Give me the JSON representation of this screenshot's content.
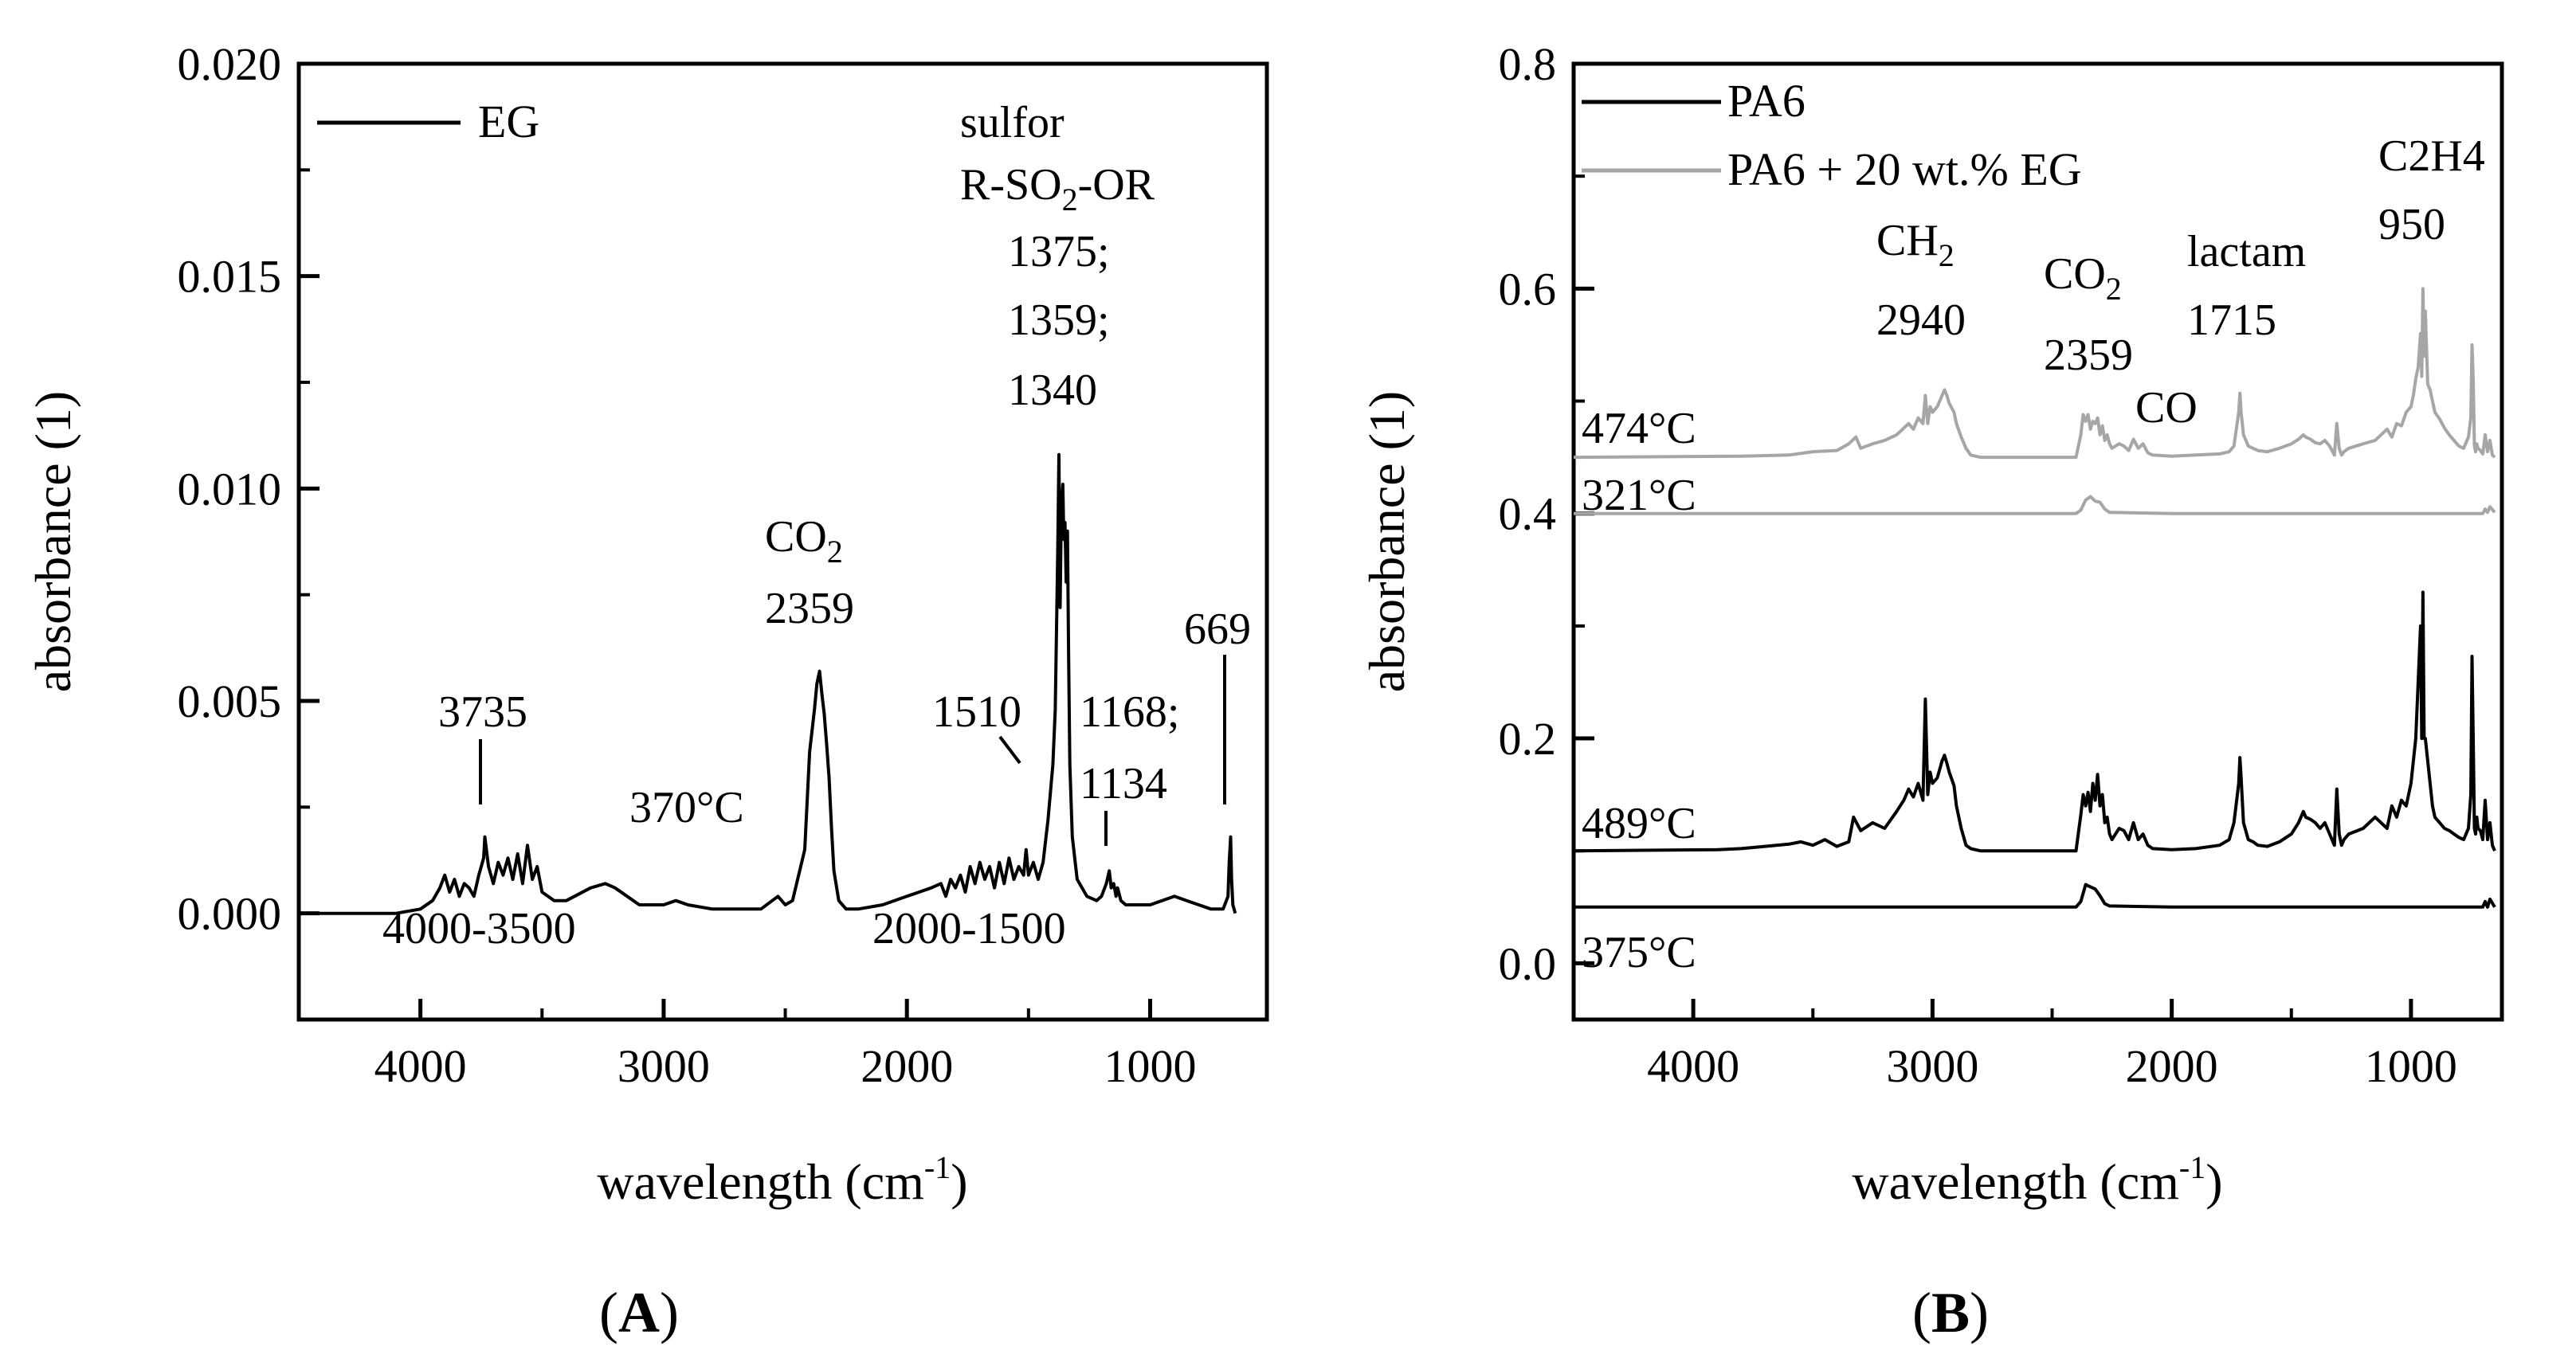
{
  "chart_data": [
    {
      "type": "line",
      "panel_label": "A",
      "xlabel": "wavelength (cm",
      "xlabel_sup": "-1",
      "xlabel_end": ")",
      "ylabel": "absorbance (1)",
      "xlim": [
        4500,
        520
      ],
      "ylim": [
        -0.0025,
        0.02
      ],
      "xticks": [
        4000,
        3000,
        2000,
        1000
      ],
      "xtick_labels": [
        "4000",
        "3000",
        "2000",
        "1000"
      ],
      "yticks": [
        0.0,
        0.005,
        0.01,
        0.015,
        0.02
      ],
      "ytick_labels": [
        "0.000",
        "0.005",
        "0.010",
        "0.015",
        "0.020"
      ],
      "legend": [
        {
          "name": "EG",
          "color": "#000000"
        }
      ],
      "series": [
        {
          "name": "EG",
          "color": "#000000",
          "x": [
            4500,
            4100,
            4000,
            3950,
            3920,
            3900,
            3880,
            3860,
            3840,
            3820,
            3800,
            3780,
            3760,
            3740,
            3735,
            3720,
            3700,
            3680,
            3660,
            3640,
            3620,
            3600,
            3580,
            3560,
            3540,
            3520,
            3500,
            3450,
            3400,
            3300,
            3240,
            3200,
            3100,
            3000,
            2950,
            2900,
            2800,
            2700,
            2600,
            2530,
            2500,
            2470,
            2420,
            2400,
            2380,
            2370,
            2359,
            2350,
            2340,
            2330,
            2320,
            2310,
            2300,
            2280,
            2250,
            2200,
            2100,
            2000,
            1950,
            1900,
            1860,
            1840,
            1820,
            1800,
            1780,
            1760,
            1740,
            1720,
            1700,
            1680,
            1660,
            1640,
            1620,
            1600,
            1580,
            1560,
            1540,
            1520,
            1510,
            1500,
            1480,
            1460,
            1440,
            1420,
            1400,
            1390,
            1380,
            1375,
            1370,
            1365,
            1359,
            1355,
            1350,
            1345,
            1340,
            1335,
            1330,
            1320,
            1300,
            1260,
            1220,
            1200,
            1180,
            1168,
            1160,
            1150,
            1140,
            1134,
            1120,
            1100,
            1000,
            900,
            850,
            800,
            750,
            700,
            680,
            675,
            669,
            665,
            660,
            650
          ],
          "y": [
            0.0,
            0.0,
            0.0001,
            0.0003,
            0.0006,
            0.0009,
            0.0005,
            0.0008,
            0.0004,
            0.0007,
            0.0006,
            0.0004,
            0.0009,
            0.0013,
            0.0018,
            0.0011,
            0.0007,
            0.0012,
            0.0009,
            0.0013,
            0.0008,
            0.0014,
            0.0007,
            0.0016,
            0.0008,
            0.0011,
            0.0005,
            0.0003,
            0.0003,
            0.0006,
            0.0007,
            0.0006,
            0.0002,
            0.0002,
            0.0003,
            0.0002,
            0.0001,
            0.0001,
            0.0001,
            0.0004,
            0.0002,
            0.0003,
            0.0015,
            0.0038,
            0.0048,
            0.0054,
            0.0057,
            0.0052,
            0.0047,
            0.004,
            0.0032,
            0.002,
            0.001,
            0.0003,
            0.0001,
            0.0001,
            0.0002,
            0.0004,
            0.0005,
            0.0006,
            0.0007,
            0.0004,
            0.0008,
            0.0006,
            0.0009,
            0.0005,
            0.0011,
            0.0007,
            0.0012,
            0.0008,
            0.0011,
            0.0006,
            0.0012,
            0.0007,
            0.0013,
            0.0008,
            0.0011,
            0.0009,
            0.0015,
            0.0009,
            0.0012,
            0.0008,
            0.0012,
            0.0022,
            0.0035,
            0.0048,
            0.0085,
            0.0108,
            0.0072,
            0.0095,
            0.0101,
            0.0088,
            0.0092,
            0.0078,
            0.009,
            0.006,
            0.0035,
            0.0018,
            0.0008,
            0.0004,
            0.0003,
            0.0004,
            0.0007,
            0.001,
            0.0006,
            0.0007,
            0.0004,
            0.0006,
            0.0003,
            0.0002,
            0.0002,
            0.0004,
            0.0003,
            0.0002,
            0.0001,
            0.0001,
            0.0004,
            0.0012,
            0.0018,
            0.0008,
            0.0002,
            0.0
          ]
        }
      ],
      "annotations": [
        {
          "text": "EG"
        },
        {
          "text": "sulfor"
        },
        {
          "text": "R-SO",
          "sub": "2",
          "text_end": "-OR"
        },
        {
          "text": "1375;"
        },
        {
          "text": "1359;"
        },
        {
          "text": "1340"
        },
        {
          "text": "CO",
          "sub": "2"
        },
        {
          "text": "2359"
        },
        {
          "text": "3735"
        },
        {
          "text": "370°C"
        },
        {
          "text": "1510"
        },
        {
          "text": "1168;"
        },
        {
          "text": "1134"
        },
        {
          "text": "669"
        },
        {
          "text": "4000-3500"
        },
        {
          "text": "2000-1500"
        }
      ]
    },
    {
      "type": "line",
      "panel_label": "B",
      "xlabel": "wavelength (cm",
      "xlabel_sup": "-1",
      "xlabel_end": ")",
      "ylabel": "absorbance (1)",
      "xlim": [
        4500,
        620
      ],
      "ylim": [
        -0.05,
        0.8
      ],
      "xticks": [
        4000,
        3000,
        2000,
        1000
      ],
      "xtick_labels": [
        "4000",
        "3000",
        "2000",
        "1000"
      ],
      "yticks": [
        0.0,
        0.2,
        0.4,
        0.6,
        0.8
      ],
      "ytick_labels": [
        "0.0",
        "0.2",
        "0.4",
        "0.6",
        "0.8"
      ],
      "legend": [
        {
          "name": "PA6",
          "color": "#000000"
        },
        {
          "name": "PA6 + 20 wt.% EG",
          "color": "#a6a6a6"
        }
      ],
      "series": [
        {
          "name": "PA6 + 20 wt.% EG 474°C",
          "label": "474°C",
          "color": "#a6a6a6",
          "x": [
            4500,
            3800,
            3600,
            3500,
            3400,
            3350,
            3320,
            3300,
            3250,
            3200,
            3150,
            3100,
            3080,
            3060,
            3040,
            3030,
            3020,
            3010,
            3000,
            2980,
            2960,
            2950,
            2940,
            2930,
            2910,
            2900,
            2880,
            2860,
            2840,
            2800,
            2700,
            2600,
            2500,
            2400,
            2380,
            2370,
            2360,
            2350,
            2340,
            2330,
            2320,
            2310,
            2300,
            2290,
            2280,
            2270,
            2260,
            2250,
            2220,
            2200,
            2180,
            2160,
            2140,
            2120,
            2100,
            2080,
            2000,
            1900,
            1800,
            1760,
            1740,
            1720,
            1715,
            1710,
            1700,
            1680,
            1660,
            1640,
            1600,
            1550,
            1500,
            1470,
            1450,
            1440,
            1420,
            1400,
            1380,
            1360,
            1340,
            1320,
            1310,
            1300,
            1290,
            1280,
            1260,
            1200,
            1150,
            1100,
            1080,
            1060,
            1040,
            1020,
            1000,
            990,
            980,
            970,
            960,
            955,
            950,
            945,
            940,
            930,
            920,
            910,
            900,
            880,
            860,
            840,
            820,
            800,
            780,
            760,
            750,
            745,
            740,
            735,
            730,
            725,
            720,
            710,
            700,
            690,
            680,
            670,
            660,
            650
          ],
          "y": [
            0.45,
            0.451,
            0.452,
            0.455,
            0.456,
            0.462,
            0.468,
            0.458,
            0.462,
            0.465,
            0.47,
            0.48,
            0.475,
            0.485,
            0.48,
            0.505,
            0.48,
            0.495,
            0.49,
            0.495,
            0.505,
            0.51,
            0.505,
            0.498,
            0.49,
            0.48,
            0.468,
            0.458,
            0.452,
            0.45,
            0.45,
            0.45,
            0.45,
            0.45,
            0.47,
            0.488,
            0.482,
            0.488,
            0.475,
            0.482,
            0.48,
            0.485,
            0.47,
            0.478,
            0.465,
            0.47,
            0.462,
            0.458,
            0.462,
            0.46,
            0.456,
            0.466,
            0.458,
            0.462,
            0.454,
            0.452,
            0.451,
            0.452,
            0.453,
            0.455,
            0.46,
            0.49,
            0.507,
            0.49,
            0.47,
            0.46,
            0.458,
            0.456,
            0.455,
            0.458,
            0.462,
            0.466,
            0.47,
            0.468,
            0.466,
            0.463,
            0.462,
            0.465,
            0.46,
            0.452,
            0.48,
            0.458,
            0.452,
            0.455,
            0.458,
            0.462,
            0.465,
            0.475,
            0.468,
            0.48,
            0.478,
            0.49,
            0.495,
            0.505,
            0.52,
            0.53,
            0.56,
            0.522,
            0.6,
            0.54,
            0.58,
            0.515,
            0.51,
            0.5,
            0.49,
            0.484,
            0.476,
            0.47,
            0.465,
            0.46,
            0.458,
            0.468,
            0.485,
            0.55,
            0.52,
            0.46,
            0.455,
            0.462,
            0.458,
            0.456,
            0.453,
            0.47,
            0.455,
            0.465,
            0.452,
            0.45
          ]
        },
        {
          "name": "PA6 + 20 wt.% EG 321°C",
          "label": "321°C",
          "color": "#a6a6a6",
          "x": [
            4500,
            3000,
            2500,
            2400,
            2380,
            2360,
            2340,
            2320,
            2300,
            2280,
            2260,
            2000,
            1500,
            1000,
            700,
            690,
            680,
            670,
            650
          ],
          "y": [
            0.4,
            0.4,
            0.4,
            0.4,
            0.403,
            0.412,
            0.415,
            0.411,
            0.41,
            0.404,
            0.401,
            0.4,
            0.4,
            0.4,
            0.4,
            0.404,
            0.401,
            0.406,
            0.401
          ]
        },
        {
          "name": "PA6 489°C",
          "label": "489°C",
          "color": "#000000",
          "x": [
            4500,
            3900,
            3800,
            3700,
            3600,
            3550,
            3500,
            3450,
            3400,
            3350,
            3330,
            3300,
            3250,
            3200,
            3150,
            3120,
            3100,
            3080,
            3060,
            3040,
            3030,
            3020,
            3010,
            3000,
            2980,
            2960,
            2950,
            2940,
            2930,
            2910,
            2900,
            2880,
            2860,
            2840,
            2800,
            2700,
            2600,
            2500,
            2400,
            2380,
            2370,
            2360,
            2350,
            2340,
            2330,
            2320,
            2310,
            2300,
            2290,
            2280,
            2270,
            2260,
            2250,
            2220,
            2200,
            2180,
            2160,
            2140,
            2120,
            2100,
            2080,
            2000,
            1900,
            1800,
            1760,
            1740,
            1720,
            1715,
            1710,
            1700,
            1680,
            1660,
            1640,
            1600,
            1550,
            1500,
            1470,
            1450,
            1440,
            1420,
            1400,
            1380,
            1360,
            1340,
            1320,
            1310,
            1300,
            1290,
            1280,
            1260,
            1200,
            1150,
            1100,
            1080,
            1060,
            1040,
            1020,
            1000,
            990,
            980,
            970,
            960,
            955,
            950,
            945,
            940,
            930,
            920,
            910,
            900,
            880,
            860,
            840,
            820,
            800,
            780,
            760,
            750,
            745,
            740,
            735,
            730,
            725,
            720,
            710,
            700,
            690,
            680,
            670,
            660,
            650
          ],
          "y": [
            0.1,
            0.101,
            0.102,
            0.104,
            0.106,
            0.108,
            0.105,
            0.11,
            0.104,
            0.108,
            0.13,
            0.118,
            0.125,
            0.12,
            0.135,
            0.145,
            0.155,
            0.148,
            0.16,
            0.145,
            0.235,
            0.15,
            0.17,
            0.16,
            0.165,
            0.18,
            0.185,
            0.178,
            0.17,
            0.158,
            0.14,
            0.12,
            0.105,
            0.102,
            0.1,
            0.1,
            0.1,
            0.1,
            0.1,
            0.132,
            0.15,
            0.14,
            0.152,
            0.135,
            0.16,
            0.145,
            0.168,
            0.14,
            0.15,
            0.125,
            0.13,
            0.115,
            0.11,
            0.12,
            0.118,
            0.11,
            0.125,
            0.11,
            0.115,
            0.105,
            0.102,
            0.101,
            0.102,
            0.105,
            0.11,
            0.125,
            0.16,
            0.183,
            0.165,
            0.125,
            0.11,
            0.108,
            0.105,
            0.104,
            0.108,
            0.115,
            0.125,
            0.135,
            0.13,
            0.128,
            0.125,
            0.12,
            0.125,
            0.115,
            0.105,
            0.155,
            0.115,
            0.105,
            0.11,
            0.115,
            0.12,
            0.13,
            0.12,
            0.14,
            0.13,
            0.145,
            0.14,
            0.16,
            0.18,
            0.2,
            0.25,
            0.3,
            0.2,
            0.33,
            0.2,
            0.2,
            0.18,
            0.16,
            0.14,
            0.13,
            0.125,
            0.12,
            0.118,
            0.115,
            0.112,
            0.11,
            0.12,
            0.15,
            0.273,
            0.2,
            0.12,
            0.115,
            0.13,
            0.12,
            0.118,
            0.11,
            0.145,
            0.11,
            0.125,
            0.105,
            0.1
          ]
        },
        {
          "name": "PA6 375°C",
          "label": "375°C",
          "color": "#000000",
          "x": [
            4500,
            3000,
            2500,
            2400,
            2380,
            2360,
            2340,
            2320,
            2300,
            2280,
            2260,
            2000,
            1500,
            1000,
            700,
            690,
            680,
            670,
            650
          ],
          "y": [
            0.05,
            0.05,
            0.05,
            0.05,
            0.055,
            0.07,
            0.068,
            0.066,
            0.06,
            0.053,
            0.051,
            0.05,
            0.05,
            0.05,
            0.05,
            0.055,
            0.05,
            0.057,
            0.05
          ]
        }
      ],
      "annotations": [
        {
          "text": "PA6"
        },
        {
          "text": "PA6 + 20 wt.% EG"
        },
        {
          "text": "CH",
          "sub": "2"
        },
        {
          "text": "2940"
        },
        {
          "text": "CO",
          "sub": "2"
        },
        {
          "text": "2359"
        },
        {
          "text": "CO"
        },
        {
          "text": "lactam"
        },
        {
          "text": "1715"
        },
        {
          "text": "C2H4"
        },
        {
          "text": "950"
        },
        {
          "text": "474°C"
        },
        {
          "text": "321°C"
        },
        {
          "text": "489°C"
        },
        {
          "text": "375°C"
        }
      ]
    }
  ]
}
